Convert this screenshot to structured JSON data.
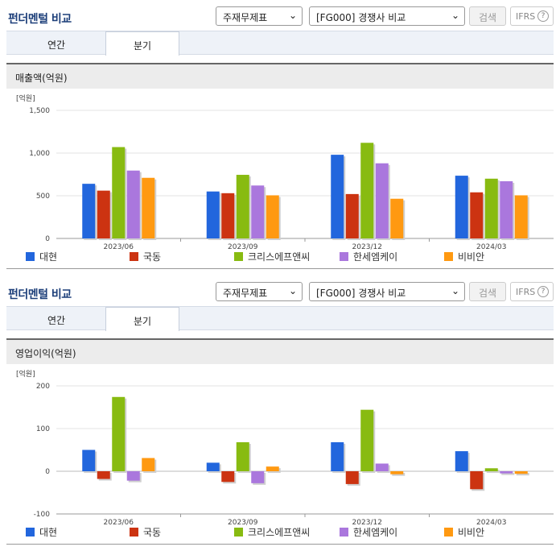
{
  "colors": [
    "#2266dd",
    "#cc3311",
    "#88bb11",
    "#aa77dd",
    "#ff9911"
  ],
  "legend_names": [
    "대현",
    "국동",
    "크리스에프앤씨",
    "한세엠케이",
    "비비안"
  ],
  "panels": [
    {
      "header_title": "펀더멘털 비교",
      "select1": "주재무제표",
      "select2": "[FG000] 경쟁사 비교",
      "search_label": "검색",
      "ifrs_label": "IFRS",
      "ifrs_help": "?",
      "tab_annual": "연간",
      "tab_quarter": "분기",
      "section_title": "매출액(억원)",
      "unit_label": "[억원]",
      "chart_data": {
        "type": "bar",
        "title": "매출액(억원)",
        "categories": [
          "2023/06",
          "2023/09",
          "2023/12",
          "2024/03"
        ],
        "ylim": [
          0,
          1500
        ],
        "yticks": [
          0,
          500,
          1000,
          1500
        ],
        "ytick_labels": [
          "0",
          "500",
          "1,000",
          "1,500"
        ],
        "series": [
          {
            "name": "대현",
            "values": [
              640,
              550,
              980,
              735
            ]
          },
          {
            "name": "국동",
            "values": [
              560,
              530,
              520,
              540
            ]
          },
          {
            "name": "크리스에프앤씨",
            "values": [
              1070,
              745,
              1120,
              700
            ]
          },
          {
            "name": "한세엠케이",
            "values": [
              795,
              620,
              880,
              670
            ]
          },
          {
            "name": "비비안",
            "values": [
              710,
              505,
              465,
              505
            ]
          }
        ],
        "grid": true,
        "legend": "bottom"
      }
    },
    {
      "header_title": "펀더멘털 비교",
      "select1": "주재무제표",
      "select2": "[FG000] 경쟁사 비교",
      "search_label": "검색",
      "ifrs_label": "IFRS",
      "ifrs_help": "?",
      "tab_annual": "연간",
      "tab_quarter": "분기",
      "section_title": "영업이익(억원)",
      "unit_label": "[억원]",
      "chart_data": {
        "type": "bar",
        "title": "영업이익(억원)",
        "categories": [
          "2023/06",
          "2023/09",
          "2023/12",
          "2024/03"
        ],
        "ylim": [
          -100,
          200
        ],
        "yticks": [
          -100,
          0,
          100,
          200
        ],
        "ytick_labels": [
          "-100",
          "0",
          "100",
          "200"
        ],
        "series": [
          {
            "name": "대현",
            "values": [
              50,
              20,
              68,
              47
            ]
          },
          {
            "name": "국동",
            "values": [
              -18,
              -25,
              -30,
              -42
            ]
          },
          {
            "name": "크리스에프앤씨",
            "values": [
              174,
              68,
              144,
              7
            ]
          },
          {
            "name": "한세엠케이",
            "values": [
              -22,
              -28,
              18,
              -5
            ]
          },
          {
            "name": "비비안",
            "values": [
              31,
              11,
              -7,
              -6
            ]
          }
        ],
        "grid": true,
        "legend": "bottom"
      }
    }
  ]
}
